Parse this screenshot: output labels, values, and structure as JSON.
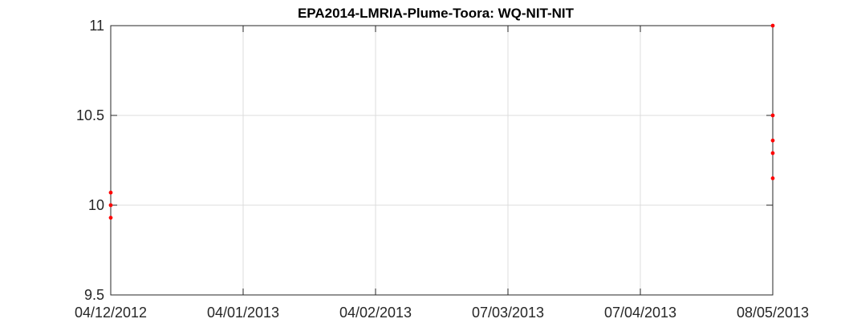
{
  "chart_data": {
    "type": "scatter",
    "title": "EPA2014-LMRIA-Plume-Toora: WQ-NIT-NIT",
    "xlabel": "",
    "ylabel": "",
    "ylim": [
      9.5,
      11
    ],
    "yticks": [
      "9.5",
      "10",
      "10.5",
      "11"
    ],
    "xlim": [
      "2012-12-04",
      "2013-05-08"
    ],
    "xticks": [
      "2012-12-04",
      "2013-01-04",
      "2013-02-04",
      "2013-03-07",
      "2013-04-07",
      "2013-05-08"
    ],
    "xtick_labels": [
      "04/12/2012",
      "04/01/2013",
      "04/02/2013",
      "07/03/2013",
      "07/04/2013",
      "08/05/2013"
    ],
    "grid": true,
    "marker_color": "#ff0000",
    "series": [
      {
        "points": [
          {
            "x": "2012-12-04",
            "y": 10.07
          },
          {
            "x": "2012-12-04",
            "y": 10.0
          },
          {
            "x": "2012-12-04",
            "y": 9.93
          },
          {
            "x": "2013-05-08",
            "y": 11.0
          },
          {
            "x": "2013-05-08",
            "y": 10.5
          },
          {
            "x": "2013-05-08",
            "y": 10.36
          },
          {
            "x": "2013-05-08",
            "y": 10.29
          },
          {
            "x": "2013-05-08",
            "y": 10.15
          }
        ]
      }
    ]
  }
}
